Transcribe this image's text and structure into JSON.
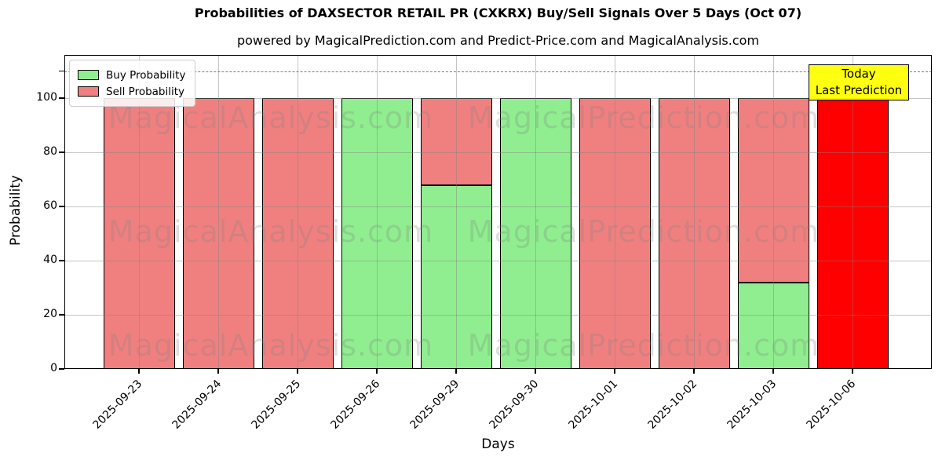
{
  "chart_data": {
    "type": "bar",
    "stacked": true,
    "title": "Probabilities of DAXSECTOR RETAIL PR (CXKRX) Buy/Sell Signals Over 5 Days (Oct 07)",
    "subtitle": "powered by MagicalPrediction.com and Predict-Price.com and MagicalAnalysis.com",
    "xlabel": "Days",
    "ylabel": "Probability",
    "ylim": [
      0,
      116
    ],
    "yticks": [
      0,
      20,
      40,
      60,
      80,
      100
    ],
    "extra_ytick": 110,
    "threshold_line": {
      "y": 110,
      "style": "dashed",
      "color": "#7b7b7b"
    },
    "grid": true,
    "categories": [
      "2025-09-23",
      "2025-09-24",
      "2025-09-25",
      "2025-09-26",
      "2025-09-29",
      "2025-09-30",
      "2025-10-01",
      "2025-10-02",
      "2025-10-03",
      "2025-10-06"
    ],
    "series": [
      {
        "name": "Buy Probability",
        "color": "#90ee90",
        "values": [
          0,
          0,
          0,
          100,
          68,
          100,
          0,
          0,
          32,
          0
        ]
      },
      {
        "name": "Sell Probability",
        "color": "#f08080",
        "values": [
          100,
          100,
          100,
          0,
          32,
          0,
          100,
          100,
          68,
          0
        ]
      },
      {
        "name": "Today Last Prediction",
        "color": "#ff0000",
        "values": [
          0,
          0,
          0,
          0,
          0,
          0,
          0,
          0,
          0,
          100
        ]
      }
    ],
    "today_index": 9,
    "bar_edge_color": "#000000",
    "legend": {
      "position": "upper left",
      "entries": [
        {
          "label": "Buy Probability",
          "color": "#90ee90"
        },
        {
          "label": "Sell Probability",
          "color": "#f08080"
        }
      ]
    },
    "annotation": {
      "lines": [
        "Today",
        "Last Prediction"
      ],
      "bg_color": "#ffff00",
      "border_color": "#000000"
    },
    "watermarks": {
      "left": "MagicalAnalysis.com",
      "right": "MagicalPrediction.com"
    }
  }
}
